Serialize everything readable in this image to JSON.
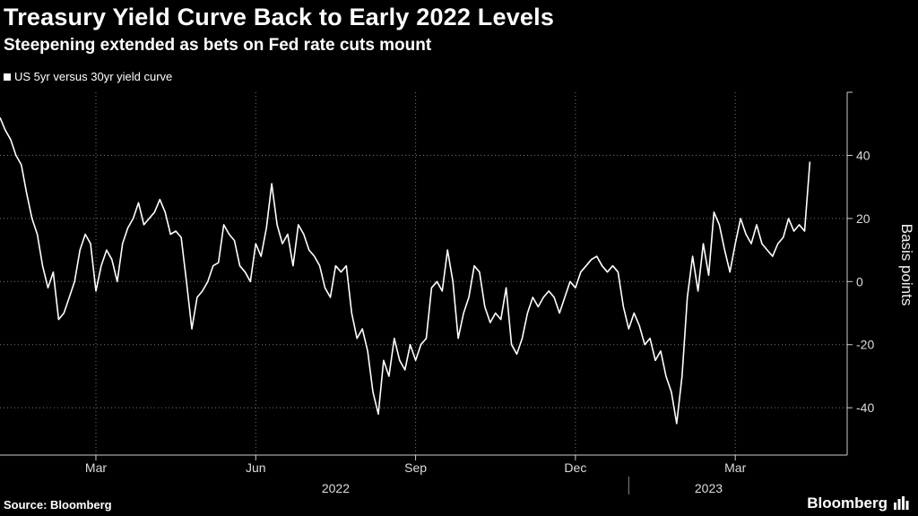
{
  "chart_data": {
    "type": "line",
    "title": "Treasury Yield Curve Back to Early 2022 Levels",
    "subtitle": "Steepening extended as bets on Fed rate cuts mount",
    "ylabel": "Basis points",
    "ylim": [
      -55,
      60
    ],
    "yticks": [
      -40,
      -20,
      0,
      20,
      40
    ],
    "xticks": [
      {
        "label": "Mar",
        "month": 2.0
      },
      {
        "label": "Jun",
        "month": 5.0
      },
      {
        "label": "Sep",
        "month": 8.0
      },
      {
        "label": "Dec",
        "month": 11.0
      },
      {
        "label": "Mar",
        "month": 14.0
      }
    ],
    "year_labels": [
      {
        "label": "2022",
        "month": 6.5
      },
      {
        "label": "2023",
        "month": 13.5
      }
    ],
    "year_divider_month": 12.0,
    "xlim": [
      0.2,
      16.1
    ],
    "series": [
      {
        "name": "US 5yr versus 30yr yield curve",
        "color": "#ffffff",
        "points": [
          [
            0.2,
            52
          ],
          [
            0.3,
            48
          ],
          [
            0.4,
            45
          ],
          [
            0.5,
            40
          ],
          [
            0.6,
            37
          ],
          [
            0.7,
            28
          ],
          [
            0.8,
            20
          ],
          [
            0.9,
            15
          ],
          [
            1.0,
            5
          ],
          [
            1.1,
            -2
          ],
          [
            1.2,
            3
          ],
          [
            1.3,
            -12
          ],
          [
            1.4,
            -10
          ],
          [
            1.5,
            -5
          ],
          [
            1.6,
            0
          ],
          [
            1.7,
            10
          ],
          [
            1.8,
            15
          ],
          [
            1.9,
            12
          ],
          [
            2.0,
            -3
          ],
          [
            2.1,
            5
          ],
          [
            2.2,
            10
          ],
          [
            2.3,
            7
          ],
          [
            2.4,
            0
          ],
          [
            2.5,
            12
          ],
          [
            2.6,
            17
          ],
          [
            2.7,
            20
          ],
          [
            2.8,
            25
          ],
          [
            2.9,
            18
          ],
          [
            3.0,
            20
          ],
          [
            3.1,
            22
          ],
          [
            3.2,
            26
          ],
          [
            3.3,
            22
          ],
          [
            3.4,
            15
          ],
          [
            3.5,
            16
          ],
          [
            3.6,
            14
          ],
          [
            3.7,
            0
          ],
          [
            3.8,
            -15
          ],
          [
            3.9,
            -5
          ],
          [
            4.0,
            -3
          ],
          [
            4.1,
            0
          ],
          [
            4.2,
            5
          ],
          [
            4.3,
            6
          ],
          [
            4.4,
            18
          ],
          [
            4.5,
            15
          ],
          [
            4.6,
            13
          ],
          [
            4.7,
            5
          ],
          [
            4.8,
            3
          ],
          [
            4.9,
            0
          ],
          [
            5.0,
            12
          ],
          [
            5.1,
            8
          ],
          [
            5.2,
            17
          ],
          [
            5.3,
            31
          ],
          [
            5.4,
            18
          ],
          [
            5.5,
            12
          ],
          [
            5.6,
            15
          ],
          [
            5.7,
            5
          ],
          [
            5.8,
            18
          ],
          [
            5.9,
            15
          ],
          [
            6.0,
            10
          ],
          [
            6.1,
            8
          ],
          [
            6.2,
            5
          ],
          [
            6.3,
            -2
          ],
          [
            6.4,
            -5
          ],
          [
            6.5,
            5
          ],
          [
            6.6,
            3
          ],
          [
            6.7,
            5
          ],
          [
            6.8,
            -10
          ],
          [
            6.9,
            -18
          ],
          [
            7.0,
            -15
          ],
          [
            7.1,
            -22
          ],
          [
            7.2,
            -35
          ],
          [
            7.3,
            -42
          ],
          [
            7.4,
            -25
          ],
          [
            7.5,
            -30
          ],
          [
            7.6,
            -18
          ],
          [
            7.7,
            -25
          ],
          [
            7.8,
            -28
          ],
          [
            7.9,
            -20
          ],
          [
            8.0,
            -25
          ],
          [
            8.1,
            -20
          ],
          [
            8.2,
            -18
          ],
          [
            8.3,
            -2
          ],
          [
            8.4,
            0
          ],
          [
            8.5,
            -3
          ],
          [
            8.6,
            10
          ],
          [
            8.7,
            0
          ],
          [
            8.8,
            -18
          ],
          [
            8.9,
            -10
          ],
          [
            9.0,
            -5
          ],
          [
            9.1,
            5
          ],
          [
            9.2,
            3
          ],
          [
            9.3,
            -8
          ],
          [
            9.4,
            -13
          ],
          [
            9.5,
            -10
          ],
          [
            9.6,
            -12
          ],
          [
            9.7,
            -2
          ],
          [
            9.8,
            -20
          ],
          [
            9.9,
            -23
          ],
          [
            10.0,
            -18
          ],
          [
            10.1,
            -10
          ],
          [
            10.2,
            -5
          ],
          [
            10.3,
            -8
          ],
          [
            10.4,
            -5
          ],
          [
            10.5,
            -3
          ],
          [
            10.6,
            -5
          ],
          [
            10.7,
            -10
          ],
          [
            10.8,
            -5
          ],
          [
            10.9,
            0
          ],
          [
            11.0,
            -2
          ],
          [
            11.1,
            3
          ],
          [
            11.2,
            5
          ],
          [
            11.3,
            7
          ],
          [
            11.4,
            8
          ],
          [
            11.5,
            5
          ],
          [
            11.6,
            3
          ],
          [
            11.7,
            5
          ],
          [
            11.8,
            3
          ],
          [
            11.9,
            -8
          ],
          [
            12.0,
            -15
          ],
          [
            12.1,
            -10
          ],
          [
            12.2,
            -14
          ],
          [
            12.3,
            -20
          ],
          [
            12.4,
            -18
          ],
          [
            12.5,
            -25
          ],
          [
            12.6,
            -22
          ],
          [
            12.7,
            -30
          ],
          [
            12.8,
            -35
          ],
          [
            12.9,
            -45
          ],
          [
            13.0,
            -30
          ],
          [
            13.1,
            -5
          ],
          [
            13.2,
            8
          ],
          [
            13.3,
            -3
          ],
          [
            13.4,
            12
          ],
          [
            13.5,
            2
          ],
          [
            13.6,
            22
          ],
          [
            13.7,
            18
          ],
          [
            13.8,
            10
          ],
          [
            13.9,
            3
          ],
          [
            14.0,
            12
          ],
          [
            14.1,
            20
          ],
          [
            14.2,
            15
          ],
          [
            14.3,
            12
          ],
          [
            14.4,
            18
          ],
          [
            14.5,
            12
          ],
          [
            14.6,
            10
          ],
          [
            14.7,
            8
          ],
          [
            14.8,
            12
          ],
          [
            14.9,
            14
          ],
          [
            15.0,
            20
          ],
          [
            15.1,
            16
          ],
          [
            15.2,
            18
          ],
          [
            15.3,
            16
          ],
          [
            15.4,
            38
          ]
        ]
      }
    ]
  },
  "footer": {
    "source": "Source: Bloomberg",
    "brand": "Bloomberg"
  }
}
